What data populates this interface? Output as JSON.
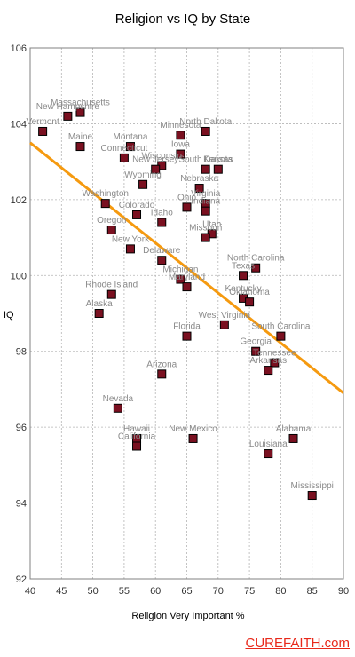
{
  "brand": "CUREFAITH.com",
  "chart_data": {
    "type": "scatter",
    "title": "Religion vs IQ by State",
    "xlabel": "Religion Very Important %",
    "ylabel": "IQ",
    "xlim": [
      40,
      90
    ],
    "ylim": [
      92,
      106
    ],
    "xticks": [
      "40",
      "45",
      "50",
      "55",
      "60",
      "65",
      "70",
      "75",
      "80",
      "85",
      "90"
    ],
    "yticks": [
      "92",
      "94",
      "96",
      "98",
      "100",
      "102",
      "104",
      "106"
    ],
    "grid": true,
    "marker_color": "#7a1020",
    "trendline": {
      "color": "#f59a10",
      "x": [
        40,
        90
      ],
      "y": [
        103.5,
        96.9
      ]
    },
    "points": [
      {
        "label": "Vermont",
        "x": 42,
        "y": 103.8
      },
      {
        "label": "New Hampshire",
        "x": 46,
        "y": 104.2
      },
      {
        "label": "Massachusetts",
        "x": 48,
        "y": 104.3
      },
      {
        "label": "Maine",
        "x": 48,
        "y": 103.4
      },
      {
        "label": "Montana",
        "x": 56,
        "y": 103.4
      },
      {
        "label": "Connecticut",
        "x": 55,
        "y": 103.1
      },
      {
        "label": "Minnesota",
        "x": 64,
        "y": 103.7
      },
      {
        "label": "North Dakota",
        "x": 68,
        "y": 103.8
      },
      {
        "label": "Iowa",
        "x": 64,
        "y": 103.2
      },
      {
        "label": "Wisconsin",
        "x": 61,
        "y": 102.9
      },
      {
        "label": "New Jersey",
        "x": 60,
        "y": 102.8
      },
      {
        "label": "South Dakota",
        "x": 68,
        "y": 102.8
      },
      {
        "label": "Kansas",
        "x": 70,
        "y": 102.8
      },
      {
        "label": "Wyoming",
        "x": 58,
        "y": 102.4
      },
      {
        "label": "Nebraska",
        "x": 67,
        "y": 102.3
      },
      {
        "label": "Washington",
        "x": 52,
        "y": 101.9
      },
      {
        "label": "Virginia",
        "x": 68,
        "y": 101.9
      },
      {
        "label": "Ohio",
        "x": 65,
        "y": 101.8
      },
      {
        "label": "Indiana",
        "x": 68,
        "y": 101.7
      },
      {
        "label": "Colorado",
        "x": 57,
        "y": 101.6
      },
      {
        "label": "Idaho",
        "x": 61,
        "y": 101.4
      },
      {
        "label": "Oregon",
        "x": 53,
        "y": 101.2
      },
      {
        "label": "Utah",
        "x": 69,
        "y": 101.1
      },
      {
        "label": "Missouri",
        "x": 68,
        "y": 101.0
      },
      {
        "label": "New York",
        "x": 56,
        "y": 100.7
      },
      {
        "label": "Delaware",
        "x": 61,
        "y": 100.4
      },
      {
        "label": "North Carolina",
        "x": 76,
        "y": 100.2
      },
      {
        "label": "Texas",
        "x": 74,
        "y": 100.0
      },
      {
        "label": "Michigan",
        "x": 64,
        "y": 99.9
      },
      {
        "label": "Maryland",
        "x": 65,
        "y": 99.7
      },
      {
        "label": "Rhode Island",
        "x": 53,
        "y": 99.5
      },
      {
        "label": "Kentucky",
        "x": 74,
        "y": 99.4
      },
      {
        "label": "Oklahoma",
        "x": 75,
        "y": 99.3
      },
      {
        "label": "Alaska",
        "x": 51,
        "y": 99.0
      },
      {
        "label": "West Virginia",
        "x": 71,
        "y": 98.7
      },
      {
        "label": "Florida",
        "x": 65,
        "y": 98.4
      },
      {
        "label": "South Carolina",
        "x": 80,
        "y": 98.4
      },
      {
        "label": "Georgia",
        "x": 76,
        "y": 98.0
      },
      {
        "label": "Tennessee",
        "x": 79,
        "y": 97.7
      },
      {
        "label": "Arkansas",
        "x": 78,
        "y": 97.5
      },
      {
        "label": "Arizona",
        "x": 61,
        "y": 97.4
      },
      {
        "label": "Nevada",
        "x": 54,
        "y": 96.5
      },
      {
        "label": "Hawaii",
        "x": 57,
        "y": 95.7
      },
      {
        "label": "California",
        "x": 57,
        "y": 95.5
      },
      {
        "label": "New Mexico",
        "x": 66,
        "y": 95.7
      },
      {
        "label": "Alabama",
        "x": 82,
        "y": 95.7
      },
      {
        "label": "Louisiana",
        "x": 78,
        "y": 95.3
      },
      {
        "label": "Mississippi",
        "x": 85,
        "y": 94.2
      }
    ]
  }
}
